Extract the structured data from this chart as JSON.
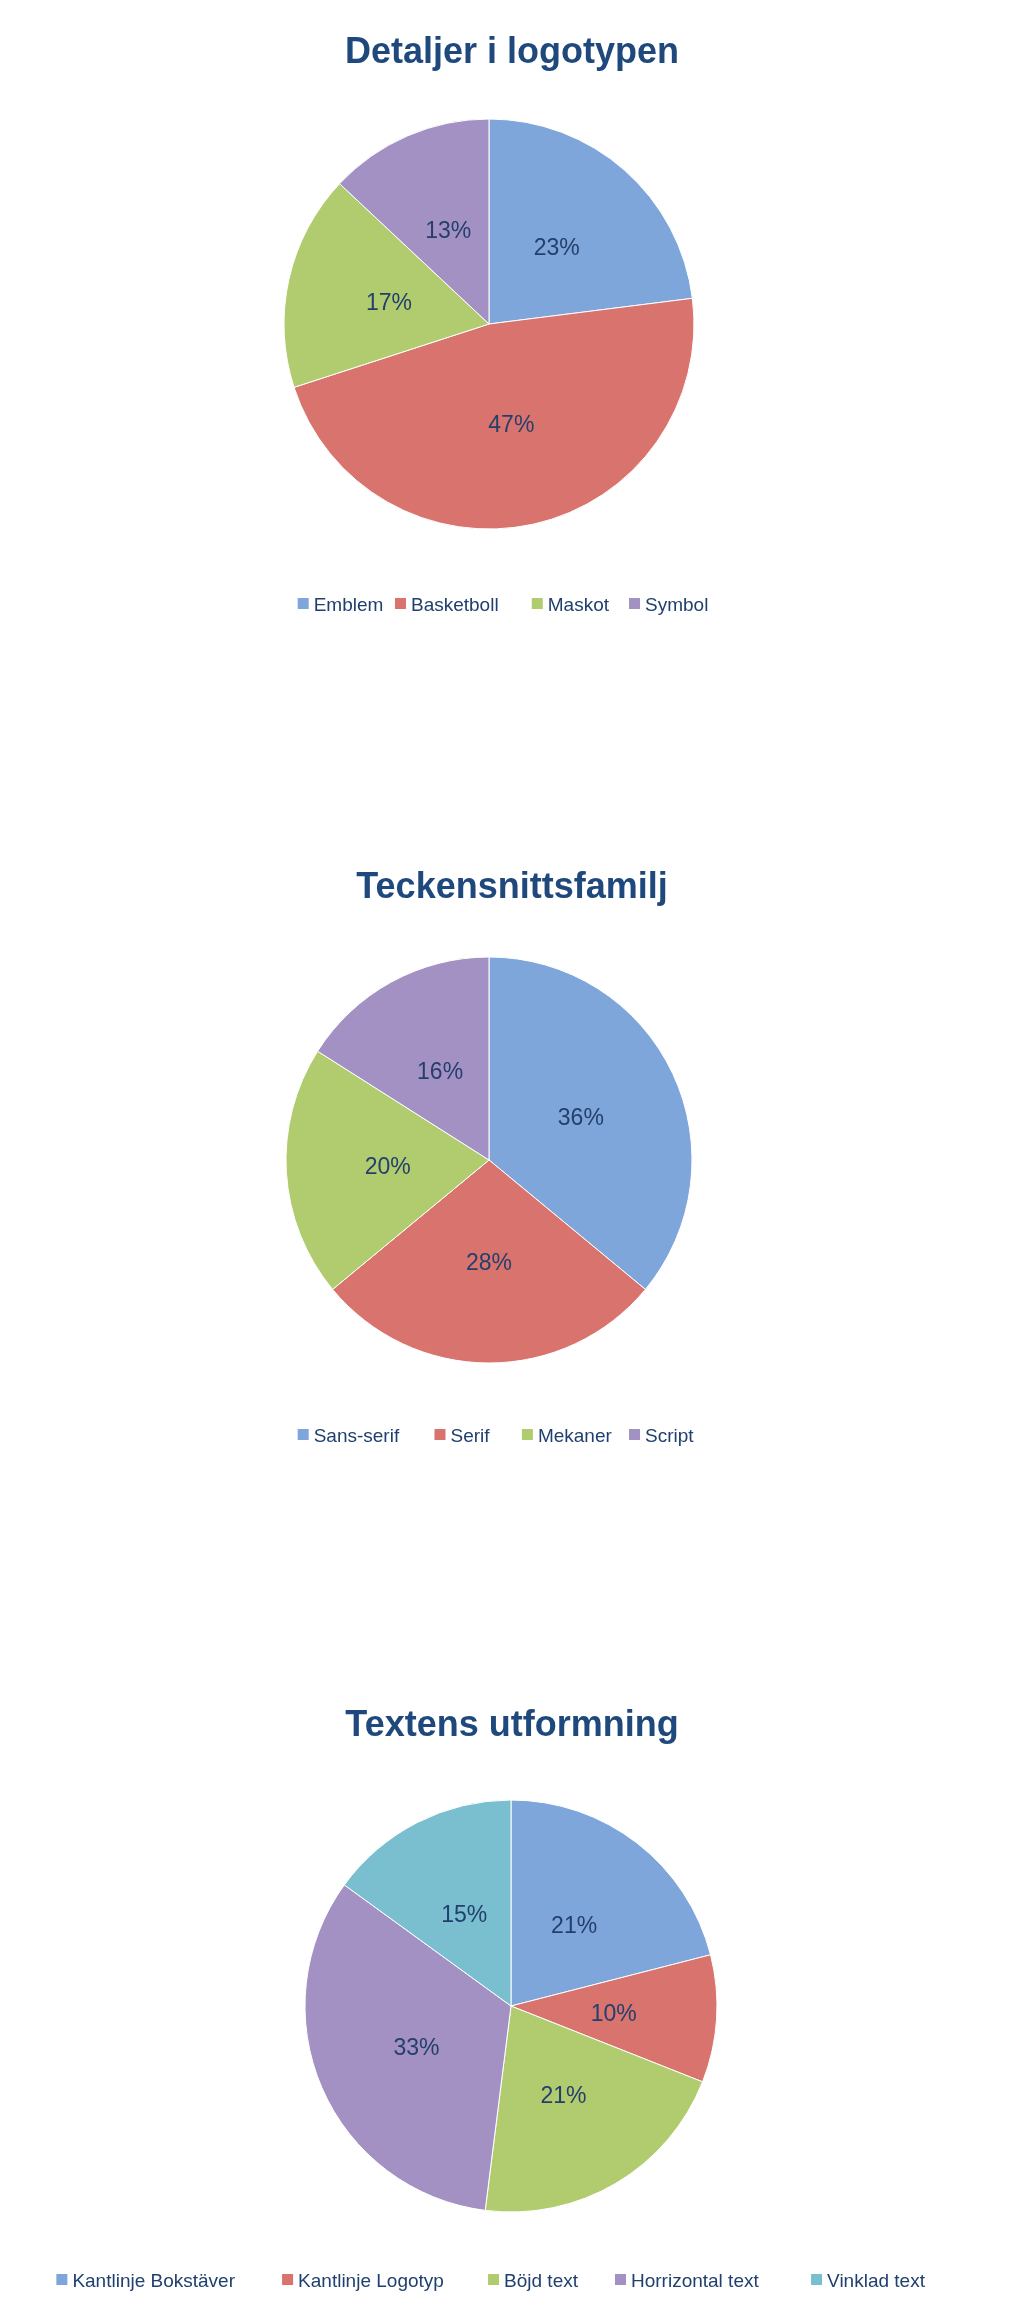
{
  "chart_data": [
    {
      "type": "pie",
      "title": "Detaljer i logotypen",
      "categories": [
        "Emblem",
        "Basketboll",
        "Maskot",
        "Symbol"
      ],
      "values": [
        23,
        47,
        17,
        13
      ],
      "value_labels": [
        "23%",
        "47%",
        "17%",
        "13%"
      ],
      "colors": [
        "#7ea6da",
        "#d9736d",
        "#b1cc6f",
        "#a391c3"
      ],
      "legend": "bottom"
    },
    {
      "type": "pie",
      "title": "Teckensnittsfamilj",
      "categories": [
        "Sans-serif",
        "Serif",
        "Mekaner",
        "Script"
      ],
      "values": [
        36,
        28,
        20,
        16
      ],
      "value_labels": [
        "36%",
        "28%",
        "20%",
        "16%"
      ],
      "colors": [
        "#7ea6da",
        "#d9736d",
        "#b1cc6f",
        "#a391c3"
      ],
      "legend": "bottom"
    },
    {
      "type": "pie",
      "title": "Textens utformning",
      "categories": [
        "Kantlinje Bokstäver",
        "Kantlinje Logotyp",
        "Böjd text",
        "Horrizontal text",
        "Vinklad text"
      ],
      "values": [
        21,
        10,
        21,
        33,
        15
      ],
      "value_labels": [
        "21%",
        "10%",
        "21%",
        "33%",
        "15%"
      ],
      "colors": [
        "#7ea6da",
        "#d9736d",
        "#b1cc6f",
        "#a391c3",
        "#79bfd0"
      ],
      "legend": "bottom"
    }
  ]
}
